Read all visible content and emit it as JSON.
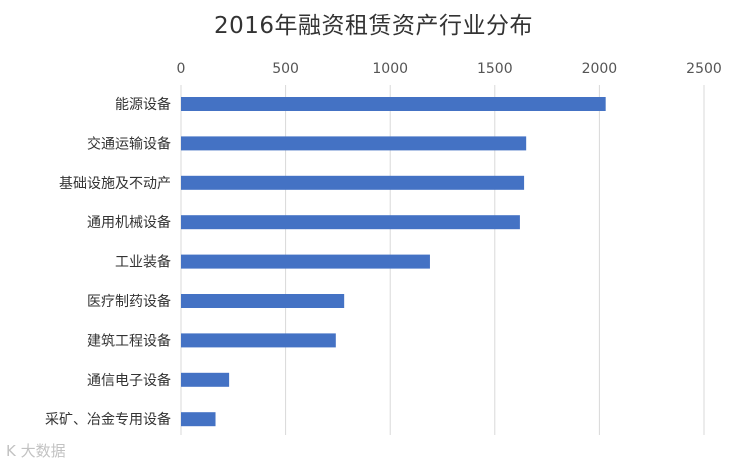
{
  "chart_data": {
    "type": "bar",
    "orientation": "horizontal",
    "title": "2016年融资租赁资产行业分布",
    "xlabel": "",
    "ylabel": "",
    "xlim": [
      0,
      2500
    ],
    "x_ticks": [
      0,
      500,
      1000,
      1500,
      2000,
      2500
    ],
    "x_axis_position": "top",
    "grid": true,
    "categories": [
      "能源设备",
      "交通运输设备",
      "基础设施及不动产",
      "通用机械设备",
      "工业装备",
      "医疗制药设备",
      "建筑工程设备",
      "通信电子设备",
      "采矿、冶金专用设备"
    ],
    "values": [
      2030,
      1650,
      1640,
      1620,
      1190,
      780,
      740,
      230,
      165
    ],
    "bar_color": "#4472C4"
  },
  "watermark": "K 大数据"
}
